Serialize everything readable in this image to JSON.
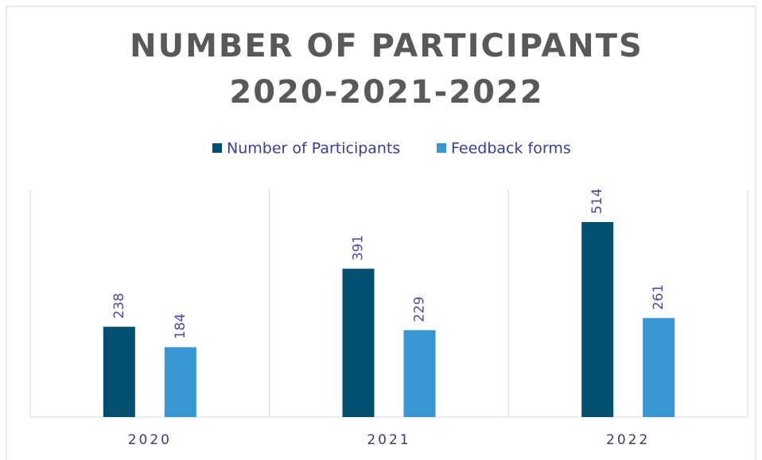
{
  "chart_data": {
    "type": "bar",
    "title": [
      "NUMBER OF PARTICIPANTS",
      "2020-2021-2022"
    ],
    "categories": [
      "2020",
      "2021",
      "2022"
    ],
    "series": [
      {
        "name": "Number of Participants",
        "color": "#034f72",
        "values": [
          238,
          391,
          514
        ]
      },
      {
        "name": "Feedback forms",
        "color": "#3a96d3",
        "values": [
          184,
          229,
          261
        ]
      }
    ],
    "ylim": [
      0,
      600
    ],
    "legend": "top"
  }
}
